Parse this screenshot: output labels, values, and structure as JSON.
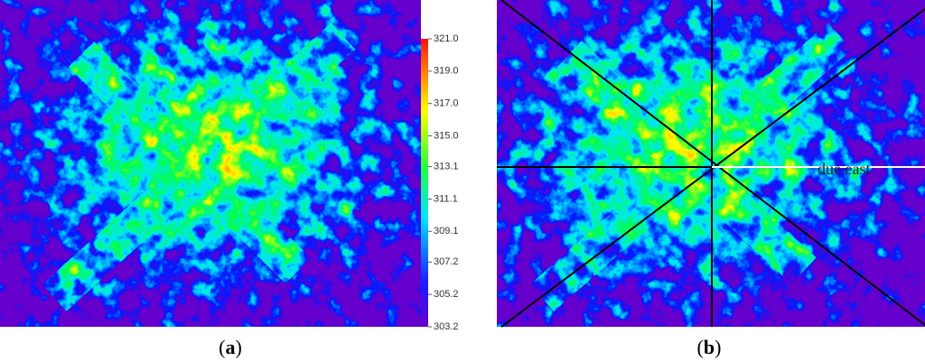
{
  "panel_a": {
    "label": [
      "(",
      "a",
      ")"
    ],
    "colorbar": {
      "range": [
        303.2,
        321.0
      ],
      "ticks": [
        {
          "value": 321,
          "label": "321.0"
        },
        {
          "value": 319,
          "label": "319.0"
        },
        {
          "value": 317,
          "label": "317.0"
        },
        {
          "value": 315,
          "label": "315.0"
        },
        313.1,
        311.1,
        309.1,
        307.2,
        305.2,
        303.2
      ]
    }
  },
  "panel_b": {
    "label": [
      "(",
      "b",
      ")"
    ],
    "annotation": "due east"
  }
}
